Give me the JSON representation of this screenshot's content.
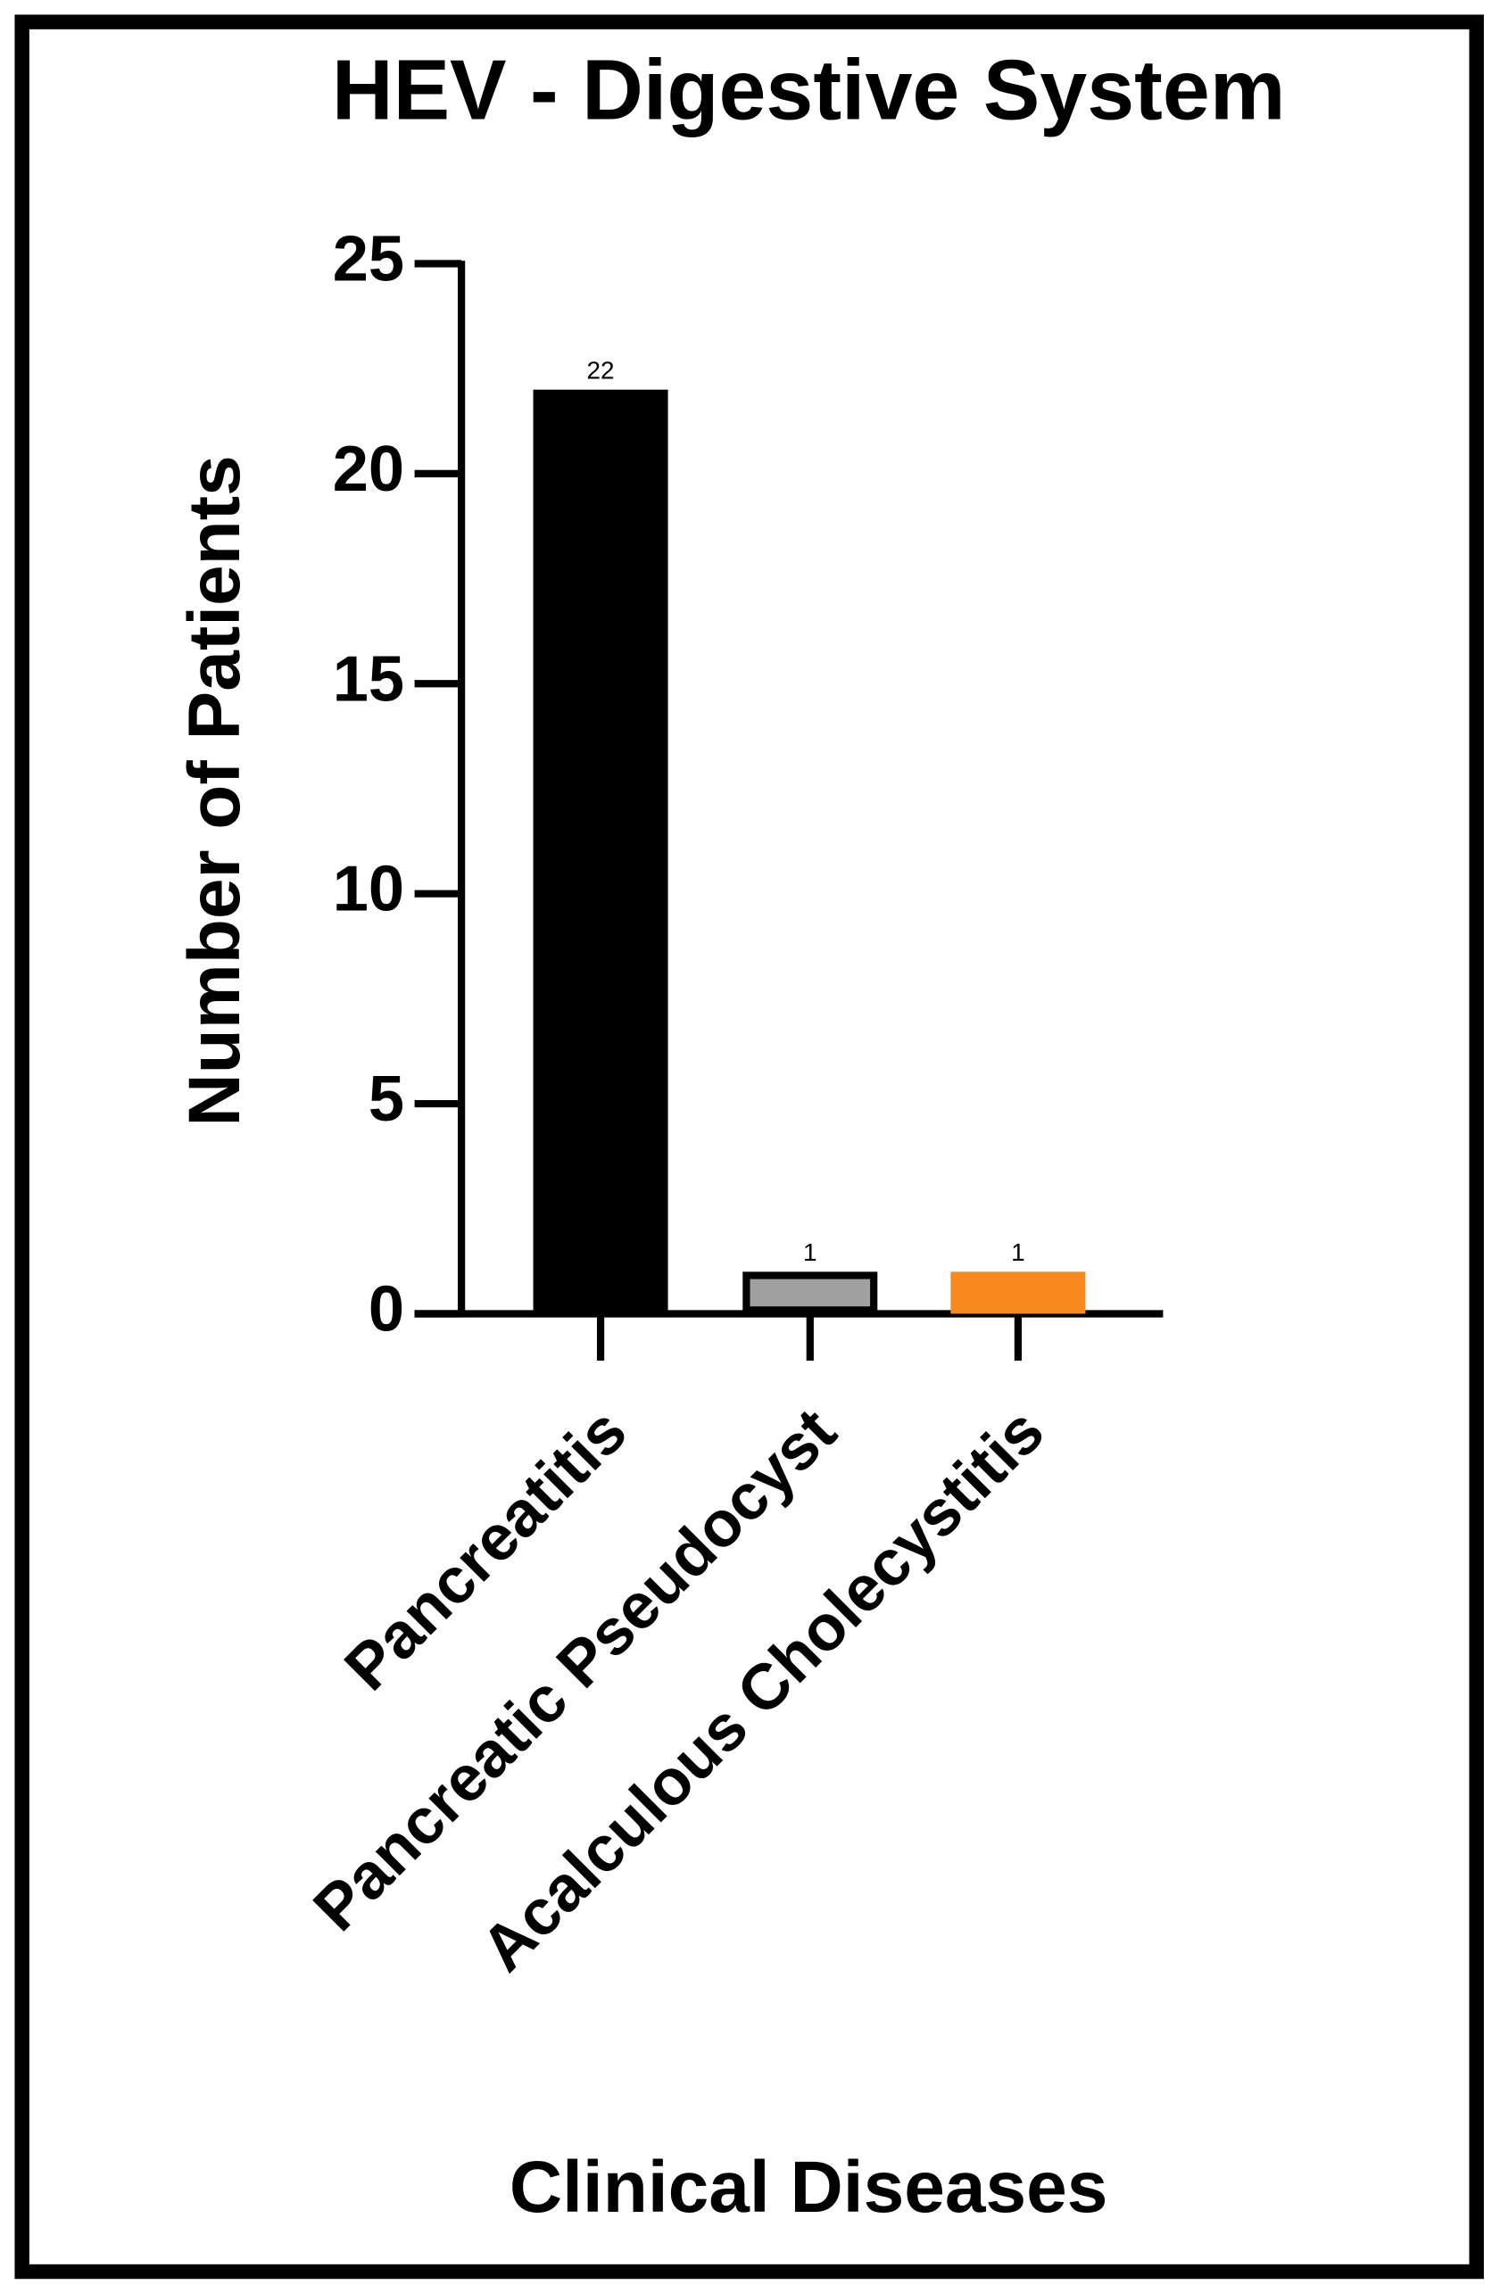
{
  "chart_data": {
    "type": "bar",
    "title": "HEV - Digestive System",
    "x_label": "Clinical Diseases",
    "y_label": "Number of Patients",
    "categories": [
      "Pancreatitis",
      "Pancreatic Pseudocyst",
      "Acalculous Cholecystitis"
    ],
    "values": [
      22,
      1,
      1
    ],
    "colors": [
      "#000000",
      "#a0a0a0",
      "#f7891f"
    ],
    "edgecolors": [
      "#000000",
      "#000000",
      "#f7891f"
    ],
    "ylim": [
      0,
      25
    ],
    "yticks": [
      0,
      5,
      10,
      15,
      20,
      25
    ],
    "grid": false
  }
}
